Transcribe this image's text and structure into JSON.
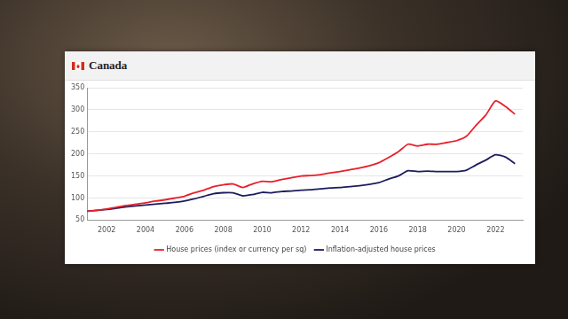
{
  "chart_data": {
    "type": "line",
    "title": "Canada",
    "x": [
      2001,
      2001.5,
      2002,
      2002.5,
      2003,
      2003.5,
      2004,
      2004.5,
      2005,
      2005.5,
      2006,
      2006.5,
      2007,
      2007.5,
      2008,
      2008.5,
      2009,
      2009.5,
      2010,
      2010.5,
      2011,
      2011.5,
      2012,
      2012.5,
      2013,
      2013.5,
      2014,
      2014.5,
      2015,
      2015.5,
      2016,
      2016.5,
      2017,
      2017.5,
      2018,
      2018.5,
      2019,
      2019.5,
      2020,
      2020.5,
      2021,
      2021.5,
      2022,
      2022.5,
      2023
    ],
    "series": [
      {
        "name": "House prices (index or currency per sq)",
        "color": "#e8202a",
        "values": [
          70,
          72,
          75,
          79,
          83,
          86,
          89,
          93,
          96,
          100,
          104,
          112,
          118,
          126,
          130,
          132,
          124,
          132,
          138,
          137,
          142,
          146,
          150,
          151,
          153,
          157,
          160,
          164,
          168,
          173,
          180,
          192,
          205,
          222,
          218,
          222,
          222,
          226,
          230,
          240,
          265,
          288,
          320,
          308,
          290
        ]
      },
      {
        "name": "Inflation-adjusted house prices",
        "color": "#1c1c5e",
        "values": [
          70,
          72,
          74,
          77,
          80,
          82,
          84,
          86,
          88,
          90,
          93,
          98,
          104,
          110,
          112,
          112,
          105,
          108,
          113,
          112,
          115,
          116,
          118,
          119,
          121,
          123,
          124,
          126,
          128,
          131,
          135,
          143,
          150,
          162,
          160,
          161,
          160,
          160,
          160,
          163,
          175,
          186,
          198,
          193,
          178
        ]
      }
    ],
    "xlim": [
      2001,
      2023.4
    ],
    "xticks": [
      2002,
      2004,
      2006,
      2008,
      2010,
      2012,
      2014,
      2016,
      2018,
      2020,
      2022
    ],
    "ylim": [
      50,
      350
    ],
    "yticks": [
      50,
      100,
      150,
      200,
      250,
      300,
      350
    ],
    "grid": "y",
    "legend": "bottom"
  }
}
